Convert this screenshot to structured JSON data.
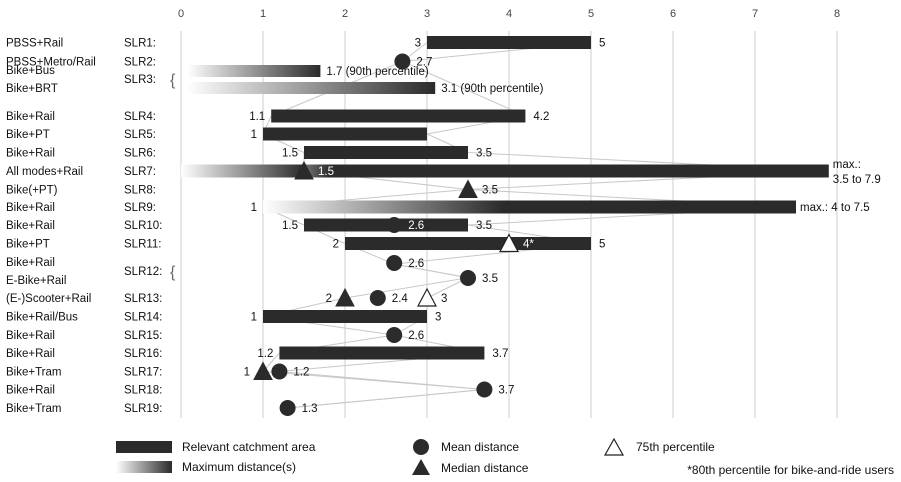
{
  "chart_data": {
    "type": "bar",
    "xlim": [
      0,
      8
    ],
    "x_ticks": [
      "0",
      "1",
      "2",
      "3",
      "4",
      "5",
      "6",
      "7",
      "8"
    ],
    "colors": {
      "bar": "#2b2b2b",
      "grid": "#cccccc",
      "connector": "#c8c8c8",
      "gradient_start": "#ffffff",
      "gradient_end": "#2b2b2b"
    },
    "rows": [
      {
        "slr": "SLR1:",
        "modes": [
          "PBSS+Rail"
        ],
        "bar": [
          3,
          5
        ],
        "labels": [
          {
            "x": 3,
            "text": "3",
            "side": "left"
          },
          {
            "x": 5,
            "text": "5",
            "side": "right"
          }
        ]
      },
      {
        "slr": "SLR2:",
        "modes": [
          "PBSS+Metro/Rail"
        ],
        "mean": 2.7,
        "labels": [
          {
            "x": 2.7,
            "text": "2.7",
            "side": "right-marker"
          }
        ]
      },
      {
        "slr": "SLR3:",
        "modes": [
          "Bike+Bus",
          "Bike+BRT"
        ],
        "brace": true,
        "gradients": [
          {
            "range": [
              0,
              1.7
            ],
            "label": "1.7 (90th percentile)"
          },
          {
            "range": [
              0,
              3.1
            ],
            "label": "3.1 (90th percentile)"
          }
        ]
      },
      {
        "slr": "SLR4:",
        "modes": [
          "Bike+Rail"
        ],
        "bar": [
          1.1,
          4.2
        ],
        "labels": [
          {
            "x": 1.1,
            "text": "1.1",
            "side": "left"
          },
          {
            "x": 4.2,
            "text": "4.2",
            "side": "right"
          }
        ]
      },
      {
        "slr": "SLR5:",
        "modes": [
          "Bike+PT"
        ],
        "bar": [
          1,
          3
        ],
        "labels": [
          {
            "x": 1,
            "text": "1",
            "side": "left"
          }
        ]
      },
      {
        "slr": "SLR6:",
        "modes": [
          "Bike+Rail"
        ],
        "bar": [
          1.5,
          3.5
        ],
        "labels": [
          {
            "x": 1.5,
            "text": "1.5",
            "side": "left"
          },
          {
            "x": 3.5,
            "text": "3.5",
            "side": "right"
          }
        ]
      },
      {
        "slr": "SLR7:",
        "modes": [
          "All modes+Rail"
        ],
        "gradient_bar": [
          0,
          1.5,
          7.9
        ],
        "median": 1.5,
        "labels": [
          {
            "x": 1.5,
            "text": "1.5",
            "side": "inside-white"
          }
        ],
        "max_label": [
          "max.:",
          "3.5 to 7.9"
        ]
      },
      {
        "slr": "SLR8:",
        "modes": [
          "Bike(+PT)"
        ],
        "median": 3.5,
        "labels": [
          {
            "x": 3.5,
            "text": "3.5",
            "side": "right-marker"
          }
        ]
      },
      {
        "slr": "SLR9:",
        "modes": [
          "Bike+Rail"
        ],
        "gradient_bar": [
          1,
          1,
          7.5
        ],
        "labels": [
          {
            "x": 1,
            "text": "1",
            "side": "left"
          }
        ],
        "max_label": [
          "max.: 4 to 7.5"
        ]
      },
      {
        "slr": "SLR10:",
        "modes": [
          "Bike+Rail"
        ],
        "bar": [
          1.5,
          3.5
        ],
        "mean": 2.6,
        "labels": [
          {
            "x": 1.5,
            "text": "1.5",
            "side": "left"
          },
          {
            "x": 2.6,
            "text": "2.6",
            "side": "inside-white"
          },
          {
            "x": 3.5,
            "text": "3.5",
            "side": "right"
          }
        ]
      },
      {
        "slr": "SLR11:",
        "modes": [
          "Bike+PT"
        ],
        "bar": [
          2,
          5
        ],
        "p75": 4,
        "labels": [
          {
            "x": 2,
            "text": "2",
            "side": "left"
          },
          {
            "x": 4,
            "text": "4*",
            "side": "inside-white"
          },
          {
            "x": 5,
            "text": "5",
            "side": "right"
          }
        ]
      },
      {
        "slr": "SLR12:",
        "modes": [
          "Bike+Rail",
          "E-Bike+Rail"
        ],
        "brace": true,
        "sub_means": [
          {
            "x": 2.6,
            "label": "2.6"
          },
          {
            "x": 3.5,
            "label": "3.5"
          }
        ]
      },
      {
        "slr": "SLR13:",
        "modes": [
          "(E-)Scooter+Rail"
        ],
        "median": 2,
        "mean": 2.4,
        "p75": 3,
        "labels": [
          {
            "x": 2,
            "text": "2",
            "side": "left-marker"
          },
          {
            "x": 2.4,
            "text": "2.4",
            "side": "right-marker"
          },
          {
            "x": 3,
            "text": "3",
            "side": "right-marker"
          }
        ]
      },
      {
        "slr": "SLR14:",
        "modes": [
          "Bike+Rail/Bus"
        ],
        "bar": [
          1,
          3
        ],
        "labels": [
          {
            "x": 1,
            "text": "1",
            "side": "left"
          },
          {
            "x": 3,
            "text": "3",
            "side": "right"
          }
        ]
      },
      {
        "slr": "SLR15:",
        "modes": [
          "Bike+Rail"
        ],
        "mean": 2.6,
        "labels": [
          {
            "x": 2.6,
            "text": "2.6",
            "side": "right-marker"
          }
        ]
      },
      {
        "slr": "SLR16:",
        "modes": [
          "Bike+Rail"
        ],
        "bar": [
          1.2,
          3.7
        ],
        "labels": [
          {
            "x": 1.2,
            "text": "1.2",
            "side": "left"
          },
          {
            "x": 3.7,
            "text": "3.7",
            "side": "right"
          }
        ]
      },
      {
        "slr": "SLR17:",
        "modes": [
          "Bike+Tram"
        ],
        "median": 1,
        "mean": 1.2,
        "labels": [
          {
            "x": 1,
            "text": "1",
            "side": "left-marker"
          },
          {
            "x": 1.2,
            "text": "1.2",
            "side": "right-marker"
          }
        ]
      },
      {
        "slr": "SLR18:",
        "modes": [
          "Bike+Rail"
        ],
        "mean": 3.7,
        "labels": [
          {
            "x": 3.7,
            "text": "3.7",
            "side": "right-marker"
          }
        ]
      },
      {
        "slr": "SLR19:",
        "modes": [
          "Bike+Tram"
        ],
        "mean": 1.3,
        "labels": [
          {
            "x": 1.3,
            "text": "1.3",
            "side": "right-marker"
          }
        ]
      }
    ],
    "legend": {
      "catchment": "Relevant catchment area",
      "maximum": "Maximum distance(s)",
      "mean": "Mean distance",
      "median": "Median distance",
      "p75": "75th percentile",
      "note": "*80th percentile for bike-and-ride users"
    }
  }
}
